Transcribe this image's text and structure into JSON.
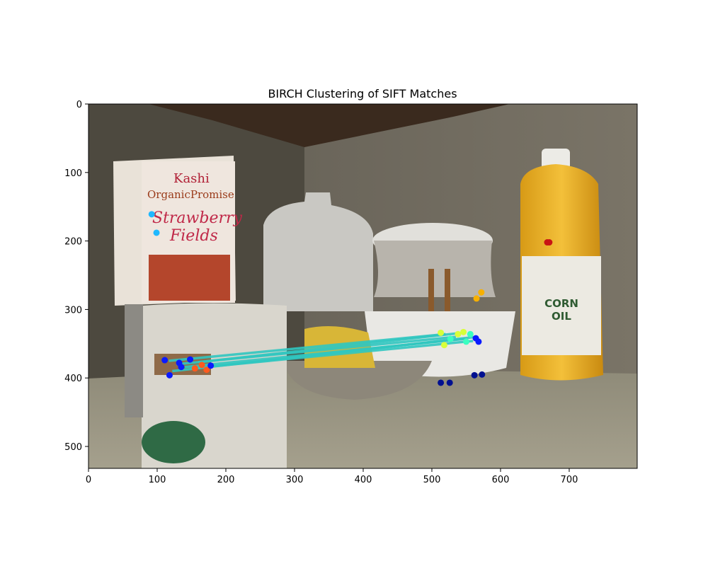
{
  "chart_data": {
    "type": "scatter",
    "title": "BIRCH Clustering of SIFT Matches",
    "xlabel": "",
    "ylabel": "",
    "xlim": [
      0,
      799
    ],
    "ylim": [
      532,
      0
    ],
    "y_inverted": true,
    "background": "photo of kitchen counter (cereal box, milk jug, bowls with banana, mug, corn oil bottle)",
    "xticks": [
      0,
      100,
      200,
      300,
      400,
      500,
      600,
      700
    ],
    "yticks": [
      0,
      100,
      200,
      300,
      400,
      500
    ],
    "match_color": "#30c6c0",
    "matches": [
      {
        "x1": 117,
        "y1": 375,
        "x2": 520,
        "y2": 336
      },
      {
        "x1": 128,
        "y1": 380,
        "x2": 535,
        "y2": 340
      },
      {
        "x1": 140,
        "y1": 384,
        "x2": 548,
        "y2": 343
      },
      {
        "x1": 150,
        "y1": 386,
        "x2": 560,
        "y2": 346
      },
      {
        "x1": 122,
        "y1": 390,
        "x2": 565,
        "y2": 340
      },
      {
        "x1": 160,
        "y1": 377,
        "x2": 545,
        "y2": 334
      }
    ],
    "points": [
      {
        "x": 92,
        "y": 161,
        "color": "#1fb8ff"
      },
      {
        "x": 99,
        "y": 188,
        "color": "#1fb8ff"
      },
      {
        "x": 668,
        "y": 202,
        "color": "#c81414"
      },
      {
        "x": 671,
        "y": 202,
        "color": "#c81414"
      },
      {
        "x": 572,
        "y": 275,
        "color": "#f7b000"
      },
      {
        "x": 565,
        "y": 284,
        "color": "#f7b000"
      },
      {
        "x": 111,
        "y": 374,
        "color": "#0a1aff"
      },
      {
        "x": 118,
        "y": 396,
        "color": "#0a1aff"
      },
      {
        "x": 132,
        "y": 378,
        "color": "#0a1aff"
      },
      {
        "x": 135,
        "y": 384,
        "color": "#0a1aff"
      },
      {
        "x": 148,
        "y": 373,
        "color": "#0a1aff"
      },
      {
        "x": 155,
        "y": 386,
        "color": "#ff5a1e"
      },
      {
        "x": 165,
        "y": 381,
        "color": "#ff5a1e"
      },
      {
        "x": 172,
        "y": 388,
        "color": "#ff5a1e"
      },
      {
        "x": 178,
        "y": 382,
        "color": "#0a1aff"
      },
      {
        "x": 513,
        "y": 334,
        "color": "#d8ff3a"
      },
      {
        "x": 518,
        "y": 352,
        "color": "#d8ff3a"
      },
      {
        "x": 527,
        "y": 343,
        "color": "#3affc0"
      },
      {
        "x": 538,
        "y": 336,
        "color": "#d8ff3a"
      },
      {
        "x": 546,
        "y": 333,
        "color": "#d8ff3a"
      },
      {
        "x": 550,
        "y": 347,
        "color": "#3affc0"
      },
      {
        "x": 556,
        "y": 336,
        "color": "#3affc0"
      },
      {
        "x": 564,
        "y": 342,
        "color": "#0a1aff"
      },
      {
        "x": 568,
        "y": 347,
        "color": "#0a1aff"
      },
      {
        "x": 513,
        "y": 407,
        "color": "#001090"
      },
      {
        "x": 526,
        "y": 407,
        "color": "#001090"
      },
      {
        "x": 562,
        "y": 396,
        "color": "#001090"
      },
      {
        "x": 573,
        "y": 395,
        "color": "#001090"
      }
    ]
  }
}
